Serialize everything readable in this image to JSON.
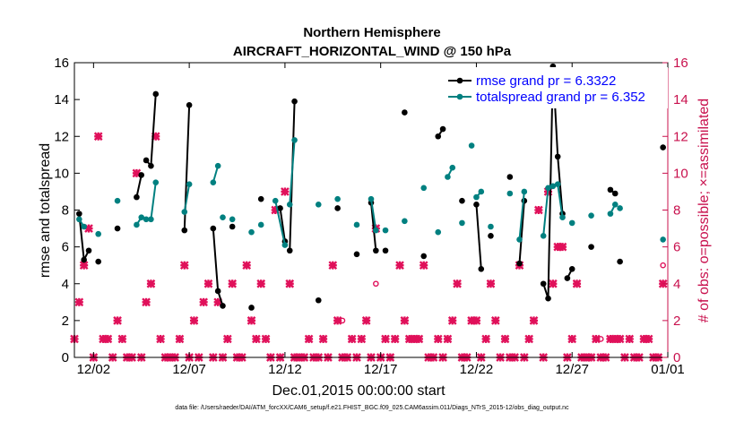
{
  "chart_data": {
    "type": "line",
    "title_lines": [
      "Northern Hemisphere",
      "AIRCRAFT_HORIZONTAL_WIND @ 150 hPa"
    ],
    "xlabel": "Dec.01,2015 00:00:00 start",
    "ylabel_left": "rmse and totalspread",
    "ylabel_right": "# of obs: o=possible; ×=assimilated",
    "footnote": "data file: /Users/raeder/DAI/ATM_forcXX/CAM6_setup/f.e21.FHIST_BGC.f09_025.CAM6assim.011/Diags_NTrS_2015-12/obs_diag_output.nc",
    "xlim": [
      0,
      31
    ],
    "ylim_left": [
      0,
      16
    ],
    "ylim_right": [
      0,
      16
    ],
    "x_ticks": [
      {
        "x": 1,
        "label": "12/02"
      },
      {
        "x": 6,
        "label": "12/07"
      },
      {
        "x": 11,
        "label": "12/12"
      },
      {
        "x": 16,
        "label": "12/17"
      },
      {
        "x": 21,
        "label": "12/22"
      },
      {
        "x": 26,
        "label": "12/27"
      },
      {
        "x": 31,
        "label": "01/01"
      }
    ],
    "y_ticks": [
      0,
      2,
      4,
      6,
      8,
      10,
      12,
      14,
      16
    ],
    "colors": {
      "rmse": "#000000",
      "spread": "#008080",
      "obs": "#e0105a",
      "legend_text": "#0000ff",
      "axis_right": "#c8104d"
    },
    "legend": [
      {
        "key": "rmse",
        "label": "rmse grand pr = 6.3322"
      },
      {
        "key": "spread",
        "label": "totalspread grand pr = 6.352"
      }
    ],
    "series": [
      {
        "name": "rmse",
        "segments": [
          [
            [
              0.25,
              7.8
            ],
            [
              0.5,
              5.3
            ],
            [
              0.75,
              5.8
            ]
          ],
          [
            [
              1.25,
              5.2
            ]
          ],
          [
            [
              2.25,
              7.0
            ]
          ],
          [
            [
              3.25,
              8.7
            ],
            [
              3.5,
              9.9
            ]
          ],
          [
            [
              3.75,
              10.7
            ],
            [
              4.0,
              10.4
            ],
            [
              4.25,
              14.3
            ]
          ],
          [
            [
              5.75,
              6.9
            ],
            [
              6.0,
              13.7
            ]
          ],
          [
            [
              7.25,
              7.0
            ],
            [
              7.5,
              3.6
            ],
            [
              7.75,
              2.8
            ]
          ],
          [
            [
              8.25,
              7.1
            ]
          ],
          [
            [
              9.25,
              2.7
            ]
          ],
          [
            [
              9.75,
              8.6
            ]
          ],
          [
            [
              10.75,
              8.1
            ],
            [
              11.0,
              6.3
            ]
          ],
          [
            [
              11.25,
              5.8
            ],
            [
              11.5,
              13.9
            ]
          ],
          [
            [
              12.75,
              3.1
            ]
          ],
          [
            [
              13.75,
              8.1
            ]
          ],
          [
            [
              14.75,
              5.6
            ]
          ],
          [
            [
              15.5,
              8.4
            ],
            [
              15.75,
              5.8
            ]
          ],
          [
            [
              16.25,
              5.8
            ]
          ],
          [
            [
              17.25,
              13.3
            ]
          ],
          [
            [
              18.25,
              5.5
            ]
          ],
          [
            [
              19.0,
              12.0
            ],
            [
              19.25,
              12.4
            ]
          ],
          [
            [
              20.25,
              8.5
            ]
          ],
          [
            [
              21.0,
              8.3
            ],
            [
              21.25,
              4.8
            ]
          ],
          [
            [
              21.75,
              6.6
            ]
          ],
          [
            [
              22.75,
              9.8
            ]
          ],
          [
            [
              23.25,
              5.1
            ],
            [
              23.5,
              8.5
            ]
          ],
          [
            [
              24.5,
              4.0
            ],
            [
              24.75,
              3.2
            ],
            [
              25.0,
              15.8
            ],
            [
              25.25,
              10.9
            ],
            [
              25.5,
              7.8
            ]
          ],
          [
            [
              25.75,
              4.3
            ],
            [
              26.0,
              4.8
            ]
          ],
          [
            [
              27.0,
              6.0
            ]
          ],
          [
            [
              28.0,
              9.1
            ],
            [
              28.25,
              8.9
            ]
          ],
          [
            [
              28.5,
              5.2
            ]
          ],
          [
            [
              30.75,
              11.4
            ]
          ]
        ]
      },
      {
        "name": "totalspread",
        "segments": [
          [
            [
              0.25,
              7.5
            ],
            [
              0.5,
              7.1
            ]
          ],
          [
            [
              1.25,
              6.7
            ]
          ],
          [
            [
              2.25,
              8.5
            ]
          ],
          [
            [
              3.25,
              7.2
            ],
            [
              3.5,
              7.6
            ]
          ],
          [
            [
              3.75,
              7.5
            ],
            [
              4.0,
              7.5
            ],
            [
              4.25,
              9.5
            ]
          ],
          [
            [
              5.75,
              7.9
            ],
            [
              6.0,
              9.4
            ]
          ],
          [
            [
              7.25,
              9.5
            ],
            [
              7.5,
              10.4
            ]
          ],
          [
            [
              7.75,
              7.6
            ]
          ],
          [
            [
              8.25,
              7.5
            ]
          ],
          [
            [
              9.25,
              6.8
            ]
          ],
          [
            [
              9.75,
              7.2
            ]
          ],
          [
            [
              10.5,
              8.5
            ],
            [
              11.0,
              6.1
            ]
          ],
          [
            [
              11.25,
              8.3
            ],
            [
              11.5,
              11.8
            ]
          ],
          [
            [
              12.75,
              8.3
            ]
          ],
          [
            [
              13.75,
              8.6
            ]
          ],
          [
            [
              14.75,
              7.2
            ]
          ],
          [
            [
              15.5,
              8.6
            ],
            [
              15.75,
              6.9
            ]
          ],
          [
            [
              16.25,
              6.9
            ]
          ],
          [
            [
              17.25,
              7.4
            ]
          ],
          [
            [
              18.25,
              9.2
            ]
          ],
          [
            [
              19.0,
              6.8
            ]
          ],
          [
            [
              19.5,
              9.8
            ],
            [
              19.75,
              10.3
            ]
          ],
          [
            [
              20.25,
              7.3
            ]
          ],
          [
            [
              20.75,
              11.5
            ]
          ],
          [
            [
              21.0,
              8.7
            ],
            [
              21.25,
              9.0
            ]
          ],
          [
            [
              21.75,
              7.1
            ]
          ],
          [
            [
              22.75,
              8.9
            ]
          ],
          [
            [
              23.25,
              6.4
            ],
            [
              23.5,
              9.0
            ]
          ],
          [
            [
              24.5,
              6.6
            ],
            [
              24.75,
              9.2
            ],
            [
              25.0,
              9.3
            ],
            [
              25.25,
              9.4
            ],
            [
              25.5,
              7.6
            ]
          ],
          [
            [
              26.0,
              7.3
            ]
          ],
          [
            [
              27.0,
              7.7
            ]
          ],
          [
            [
              28.0,
              7.8
            ],
            [
              28.25,
              8.3
            ]
          ],
          [
            [
              28.5,
              8.1
            ]
          ],
          [
            [
              30.75,
              6.4
            ]
          ]
        ]
      }
    ],
    "obs_assimilated": [
      [
        0.0,
        1
      ],
      [
        0.25,
        3
      ],
      [
        0.5,
        5
      ],
      [
        0.75,
        7
      ],
      [
        1.0,
        0
      ],
      [
        1.25,
        12
      ],
      [
        1.5,
        1
      ],
      [
        1.75,
        1
      ],
      [
        2.0,
        0
      ],
      [
        2.25,
        2
      ],
      [
        2.5,
        1
      ],
      [
        2.75,
        0
      ],
      [
        3.0,
        0
      ],
      [
        3.25,
        10
      ],
      [
        3.5,
        0
      ],
      [
        3.75,
        3
      ],
      [
        4.0,
        4
      ],
      [
        4.25,
        12
      ],
      [
        4.5,
        1
      ],
      [
        4.75,
        0
      ],
      [
        5.0,
        0
      ],
      [
        5.25,
        0
      ],
      [
        5.5,
        1
      ],
      [
        5.75,
        5
      ],
      [
        6.0,
        0
      ],
      [
        6.25,
        2
      ],
      [
        6.5,
        0
      ],
      [
        6.75,
        3
      ],
      [
        7.0,
        4
      ],
      [
        7.25,
        0
      ],
      [
        7.5,
        3
      ],
      [
        7.75,
        0
      ],
      [
        8.0,
        1
      ],
      [
        8.25,
        4
      ],
      [
        8.5,
        0
      ],
      [
        8.75,
        0
      ],
      [
        9.0,
        5
      ],
      [
        9.25,
        2
      ],
      [
        9.5,
        1
      ],
      [
        9.75,
        4
      ],
      [
        10.0,
        1
      ],
      [
        10.25,
        0
      ],
      [
        10.5,
        8
      ],
      [
        10.75,
        0
      ],
      [
        11.0,
        9
      ],
      [
        11.25,
        4
      ],
      [
        11.5,
        0
      ],
      [
        11.75,
        0
      ],
      [
        12.0,
        0
      ],
      [
        12.25,
        1
      ],
      [
        12.5,
        0
      ],
      [
        12.75,
        0
      ],
      [
        13.0,
        1
      ],
      [
        13.25,
        0
      ],
      [
        13.5,
        5
      ],
      [
        13.75,
        2
      ],
      [
        14.0,
        0
      ],
      [
        14.25,
        0
      ],
      [
        14.5,
        1
      ],
      [
        14.75,
        0
      ],
      [
        15.0,
        1
      ],
      [
        15.25,
        2
      ],
      [
        15.5,
        0
      ],
      [
        15.75,
        7
      ],
      [
        16.0,
        0
      ],
      [
        16.25,
        1
      ],
      [
        16.5,
        0
      ],
      [
        16.75,
        1
      ],
      [
        17.0,
        5
      ],
      [
        17.25,
        2
      ],
      [
        17.5,
        1
      ],
      [
        17.75,
        1
      ],
      [
        18.0,
        1
      ],
      [
        18.25,
        5
      ],
      [
        18.5,
        0
      ],
      [
        18.75,
        0
      ],
      [
        19.0,
        1
      ],
      [
        19.25,
        0
      ],
      [
        19.5,
        1
      ],
      [
        19.75,
        2
      ],
      [
        20.0,
        4
      ],
      [
        20.25,
        0
      ],
      [
        20.5,
        0
      ],
      [
        20.75,
        2
      ],
      [
        21.0,
        2
      ],
      [
        21.25,
        0
      ],
      [
        21.5,
        1
      ],
      [
        21.75,
        4
      ],
      [
        22.0,
        2
      ],
      [
        22.25,
        0
      ],
      [
        22.5,
        1
      ],
      [
        22.75,
        0
      ],
      [
        23.0,
        0
      ],
      [
        23.25,
        5
      ],
      [
        23.5,
        0
      ],
      [
        23.75,
        1
      ],
      [
        24.0,
        2
      ],
      [
        24.25,
        8
      ],
      [
        24.5,
        0
      ],
      [
        24.75,
        9
      ],
      [
        25.0,
        4
      ],
      [
        25.25,
        6
      ],
      [
        25.5,
        6
      ],
      [
        25.75,
        0
      ],
      [
        26.0,
        1
      ],
      [
        26.25,
        4
      ],
      [
        26.5,
        0
      ],
      [
        26.75,
        0
      ],
      [
        27.0,
        0
      ],
      [
        27.25,
        1
      ],
      [
        27.5,
        0
      ],
      [
        27.75,
        0
      ],
      [
        28.0,
        1
      ],
      [
        28.25,
        1
      ],
      [
        28.5,
        1
      ],
      [
        28.75,
        0
      ],
      [
        29.0,
        1
      ],
      [
        29.25,
        0
      ],
      [
        29.5,
        0
      ],
      [
        29.75,
        1
      ],
      [
        30.0,
        1
      ],
      [
        30.25,
        0
      ],
      [
        30.5,
        0
      ],
      [
        30.75,
        4
      ]
    ],
    "obs_possible": [
      [
        15.75,
        4
      ],
      [
        14.0,
        2
      ],
      [
        17.5,
        1
      ],
      [
        27.5,
        1
      ],
      [
        30.75,
        5
      ]
    ]
  }
}
